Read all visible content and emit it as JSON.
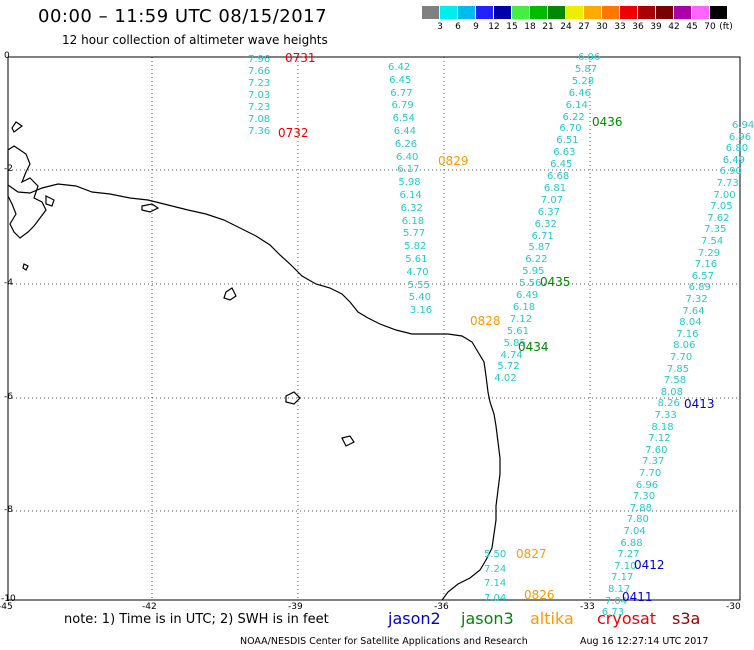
{
  "header": {
    "title": "00:00 – 11:59 UTC 08/15/2017",
    "subtitle": "12 hour collection of altimeter wave heights"
  },
  "legend": {
    "unit": "(ft)",
    "colors": [
      "#808080",
      "#00eeee",
      "#00bbee",
      "#2222ff",
      "#0000aa",
      "#44ee44",
      "#00bb00",
      "#008800",
      "#eeee00",
      "#ffaa00",
      "#ff7700",
      "#ee0000",
      "#aa0000",
      "#770000",
      "#aa00aa",
      "#ff66ff",
      "#000000"
    ],
    "labels": [
      "3",
      "6",
      "9",
      "12",
      "15",
      "18",
      "21",
      "24",
      "27",
      "30",
      "33",
      "36",
      "39",
      "42",
      "45",
      "70"
    ]
  },
  "axes": {
    "y_labels": [
      "0",
      "-2",
      "-4",
      "-6",
      "-8",
      "-10"
    ],
    "x_labels": [
      "-45",
      "-42",
      "-39",
      "-36",
      "-33",
      "-30"
    ]
  },
  "footer": {
    "note": "note: 1) Time is in UTC; 2) SWH is in feet",
    "satellites": [
      {
        "name": "jason2",
        "color": "#0000cc"
      },
      {
        "name": "jason3",
        "color": "#008800"
      },
      {
        "name": "altika",
        "color": "#ff9900"
      },
      {
        "name": "cryosat",
        "color": "#ee0000"
      },
      {
        "name": "s3a",
        "color": "#990000"
      }
    ],
    "credit": "NOAA/NESDIS Center for Satellite Applications and Research",
    "timestamp": "Aug 16 12:27:14 UTC 2017"
  },
  "tracks": [
    {
      "values": [
        "7.96",
        "7.66",
        "7.23",
        "7.03",
        "7.23",
        "7.08",
        "7.36"
      ]
    },
    {
      "values": [
        "6.42",
        "6.45",
        "6.77",
        "6.79",
        "6.54",
        "6.44",
        "6.26",
        "6.40",
        "6.17",
        "5.98",
        "6.14",
        "6.32",
        "6.18",
        "5.77",
        "5.82",
        "5.61",
        "4.70",
        "5.55",
        "5.40",
        "3.16"
      ]
    },
    {
      "values": [
        "6.06",
        "5.87",
        "5.28",
        "6.46",
        "6.14",
        "6.22",
        "6.70",
        "6.51",
        "6.63",
        "6.45",
        "6.68",
        "6.81",
        "7.07",
        "6.37",
        "6.32",
        "6.71",
        "5.87",
        "6.22",
        "5.95",
        "5.56",
        "6.49",
        "6.18",
        "7.12",
        "5.61",
        "5.85",
        "4.74",
        "5.72",
        "4.02"
      ]
    },
    {
      "values": [
        "6.94",
        "6.96",
        "6.80",
        "6.49",
        "6.90",
        "7.73",
        "7.00",
        "7.05",
        "7.62",
        "7.35",
        "7.54",
        "7.29",
        "7.16",
        "6.57",
        "6.89",
        "7.32",
        "7.64",
        "8.04",
        "7.16",
        "8.06",
        "7.70",
        "7.85",
        "7.58",
        "8.08",
        "8.26",
        "7.33",
        "8.18",
        "7.12",
        "7.60",
        "7.37",
        "7.70",
        "6.96",
        "7.30",
        "7.88",
        "7.80",
        "7.04",
        "6.88",
        "7.27",
        "7.10",
        "7.17",
        "8.17",
        "7.04",
        "6.73"
      ]
    },
    {
      "values": [
        "5.50",
        "7.24",
        "7.14",
        "7.04"
      ]
    }
  ],
  "passes": [
    {
      "label": "0731",
      "color": "#ee0000"
    },
    {
      "label": "0732",
      "color": "#ee0000"
    },
    {
      "label": "0829",
      "color": "#ff9900"
    },
    {
      "label": "0436",
      "color": "#008800"
    },
    {
      "label": "0435",
      "color": "#008800"
    },
    {
      "label": "0828",
      "color": "#ff9900"
    },
    {
      "label": "0434",
      "color": "#008800"
    },
    {
      "label": "0413",
      "color": "#0000cc"
    },
    {
      "label": "0827",
      "color": "#ff9900"
    },
    {
      "label": "0412",
      "color": "#0000cc"
    },
    {
      "label": "0826",
      "color": "#ff9900"
    },
    {
      "label": "0411",
      "color": "#0000cc"
    }
  ],
  "obs_color": "#22cccc"
}
